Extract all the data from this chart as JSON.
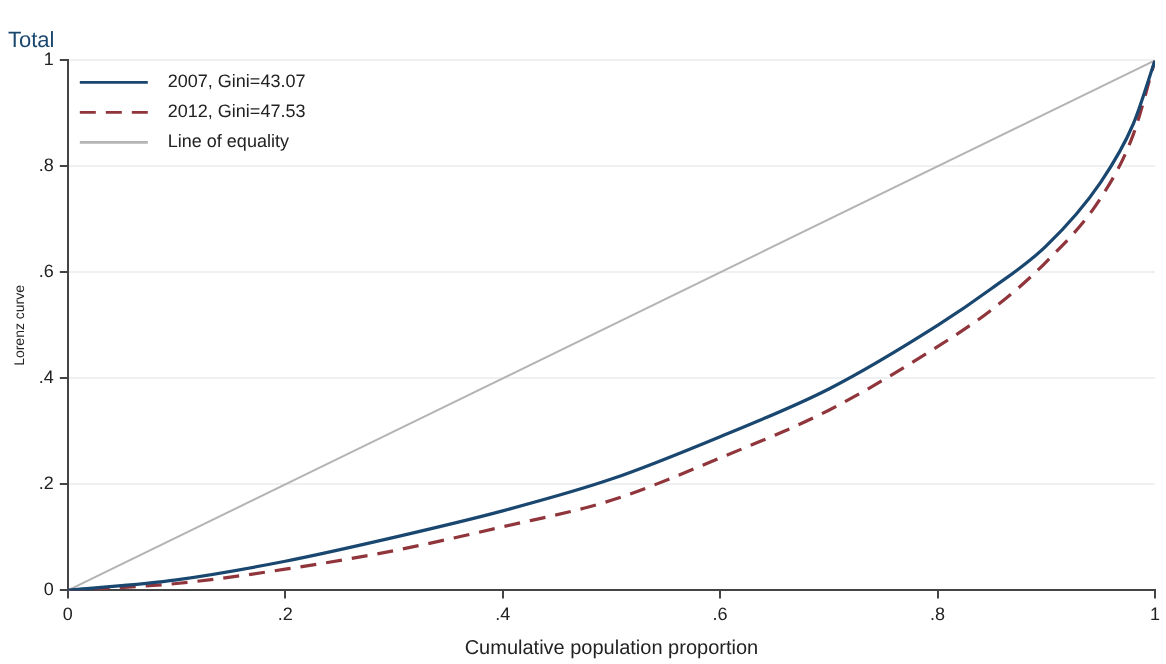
{
  "chart_data": {
    "type": "line",
    "title": "Total",
    "xlabel": "Cumulative population proportion",
    "ylabel": "Lorenz curve",
    "xlim": [
      0,
      1
    ],
    "ylim": [
      0,
      1
    ],
    "xticks": [
      0,
      {
        "value": 0.2,
        "label": ".2"
      },
      {
        "value": 0.4,
        "label": ".4"
      },
      {
        "value": 0.6,
        "label": ".6"
      },
      {
        "value": 0.8,
        "label": ".8"
      },
      1
    ],
    "yticks": [
      0,
      {
        "value": 0.2,
        "label": ".2"
      },
      {
        "value": 0.4,
        "label": ".4"
      },
      {
        "value": 0.6,
        "label": ".6"
      },
      {
        "value": 0.8,
        "label": ".8"
      },
      1
    ],
    "grid": "y",
    "legend": "top left",
    "marker": "none",
    "series": [
      {
        "name": "2007, Gini=43.07",
        "color": "#1a476f",
        "line_style": "solid",
        "x": [
          0,
          0.1,
          0.2,
          0.3,
          0.4,
          0.5,
          0.6,
          0.7,
          0.8,
          0.85,
          0.9,
          0.95,
          0.98,
          1
        ],
        "values": [
          0,
          0.02,
          0.055,
          0.1,
          0.15,
          0.21,
          0.29,
          0.38,
          0.5,
          0.57,
          0.65,
          0.77,
          0.88,
          1
        ]
      },
      {
        "name": "2012, Gini=47.53",
        "color": "#90353b",
        "line_style": "dashed",
        "x": [
          0,
          0.1,
          0.2,
          0.3,
          0.4,
          0.5,
          0.6,
          0.7,
          0.8,
          0.85,
          0.9,
          0.95,
          0.98,
          1
        ],
        "values": [
          0,
          0.013,
          0.04,
          0.075,
          0.12,
          0.17,
          0.25,
          0.34,
          0.46,
          0.53,
          0.62,
          0.74,
          0.86,
          1
        ]
      },
      {
        "name": "Line of equality",
        "color": "#b4b4b4",
        "line_style": "solid",
        "x": [
          0,
          1
        ],
        "values": [
          0,
          1
        ]
      }
    ]
  }
}
